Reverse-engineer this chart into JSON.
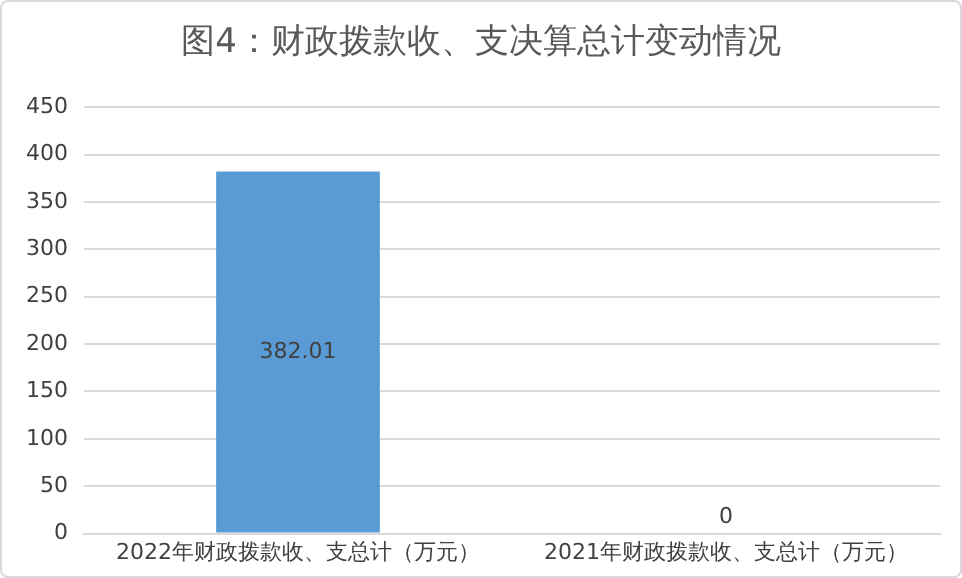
{
  "chart_data": {
    "type": "bar",
    "title": "图4：财政拨款收、支决算总计变动情况",
    "categories": [
      "2022年财政拨款收、支总计（万元）",
      "2021年财政拨款收、支总计（万元）"
    ],
    "values": [
      382.01,
      0
    ],
    "color": "#5b9bd5",
    "ylim": [
      0,
      450
    ],
    "yticks": [
      0,
      50,
      100,
      150,
      200,
      250,
      300,
      350,
      400,
      450
    ],
    "grid": "y",
    "data_labels": true,
    "legend": false
  }
}
